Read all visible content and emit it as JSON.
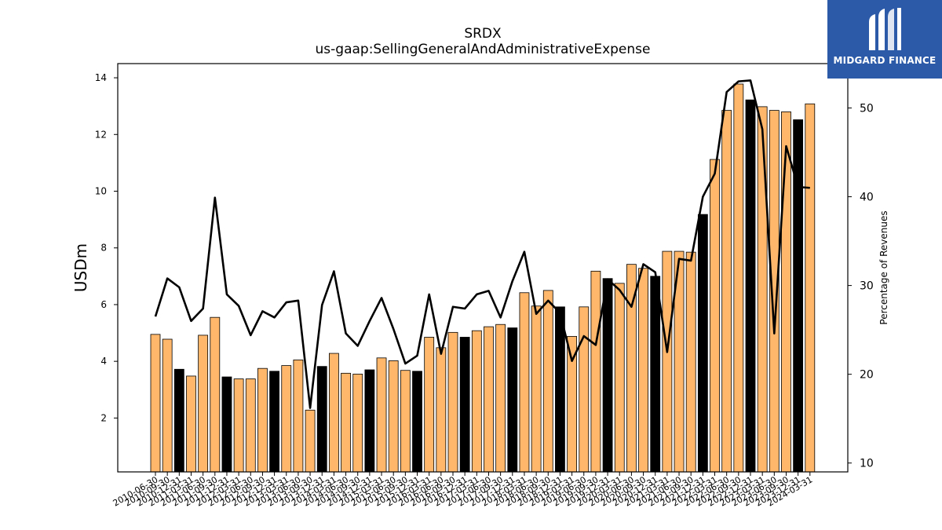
{
  "chart_data": {
    "type": "bar",
    "title": "SRDX",
    "subtitle": "us-gaap:SellingGeneralAndAdministrativeExpense",
    "ylabel": "USDm",
    "y2label": "Percentage of Revenues",
    "ylim": [
      0.1,
      14.5
    ],
    "y2lim": [
      9,
      55
    ],
    "yticks": [
      2,
      4,
      6,
      8,
      10,
      12,
      14
    ],
    "y2ticks": [
      10,
      20,
      30,
      40,
      50
    ],
    "colors": {
      "bar": "#ffb86b",
      "bar_annual": "#000000",
      "line": "#000000"
    },
    "x": [
      "2010-06-30",
      "2010-09-30",
      "2010-12-31",
      "2011-03-31",
      "2011-06-30",
      "2011-09-30",
      "2011-12-31",
      "2012-03-31",
      "2012-06-30",
      "2012-09-30",
      "2012-12-31",
      "2013-03-31",
      "2013-06-30",
      "2013-09-30",
      "2013-12-31",
      "2014-03-31",
      "2014-06-30",
      "2014-09-30",
      "2014-12-31",
      "2015-03-31",
      "2015-06-30",
      "2015-09-30",
      "2015-12-31",
      "2016-03-31",
      "2016-06-30",
      "2016-09-30",
      "2016-12-31",
      "2017-03-31",
      "2017-06-30",
      "2017-09-30",
      "2017-12-31",
      "2018-03-31",
      "2018-06-30",
      "2018-09-30",
      "2018-12-31",
      "2019-03-31",
      "2019-06-30",
      "2019-09-30",
      "2019-12-31",
      "2020-03-31",
      "2020-06-30",
      "2020-09-30",
      "2020-12-31",
      "2021-03-31",
      "2021-06-30",
      "2021-09-30",
      "2021-12-31",
      "2022-03-31",
      "2022-06-30",
      "2022-09-30",
      "2022-12-31",
      "2023-03-31",
      "2023-06-30",
      "2023-09-30",
      "2023-12-31",
      "2024-03-31"
    ],
    "annual": [
      false,
      false,
      true,
      false,
      false,
      false,
      true,
      false,
      false,
      false,
      true,
      false,
      false,
      false,
      true,
      false,
      false,
      false,
      true,
      false,
      false,
      false,
      true,
      false,
      false,
      false,
      true,
      false,
      false,
      false,
      true,
      false,
      false,
      false,
      true,
      false,
      false,
      false,
      true,
      false,
      false,
      false,
      true,
      false,
      false,
      false,
      true,
      false,
      false,
      false,
      true,
      false,
      false,
      false,
      true,
      false
    ],
    "series": [
      {
        "name": "",
        "kind": "bar",
        "values": [
          4.95,
          4.78,
          3.72,
          3.48,
          4.92,
          5.55,
          3.45,
          3.38,
          3.38,
          3.75,
          3.65,
          3.85,
          4.05,
          2.28,
          3.82,
          4.28,
          3.58,
          3.55,
          3.7,
          4.12,
          4.02,
          3.68,
          3.65,
          4.85,
          4.48,
          5.02,
          4.85,
          5.08,
          5.22,
          5.3,
          5.18,
          6.42,
          5.95,
          6.5,
          5.92,
          4.88,
          5.92,
          7.18,
          6.92,
          6.75,
          7.42,
          7.28,
          7.0,
          7.88,
          7.88,
          7.85,
          9.18,
          11.12,
          12.85,
          13.78,
          13.22,
          12.98,
          12.85,
          12.8,
          12.52,
          13.08
        ]
      },
      {
        "name": "",
        "kind": "line",
        "axis": "right",
        "values": [
          26.5,
          30.8,
          29.8,
          26.0,
          27.4,
          39.9,
          29.0,
          27.7,
          24.4,
          27.1,
          26.4,
          28.1,
          28.3,
          16.2,
          27.8,
          31.6,
          24.6,
          23.2,
          26.0,
          28.6,
          25.1,
          21.2,
          22.1,
          29.0,
          22.3,
          27.6,
          27.4,
          29.0,
          29.4,
          26.4,
          30.5,
          33.8,
          26.8,
          28.3,
          26.9,
          21.5,
          24.3,
          23.3,
          30.7,
          29.5,
          27.6,
          32.4,
          31.5,
          22.5,
          33.0,
          32.8,
          40.0,
          42.6,
          51.8,
          53.0,
          53.1,
          47.6,
          24.6,
          45.7,
          41.1,
          41.0
        ]
      }
    ]
  },
  "logo": {
    "name": "MIDGARD FINANCE"
  }
}
